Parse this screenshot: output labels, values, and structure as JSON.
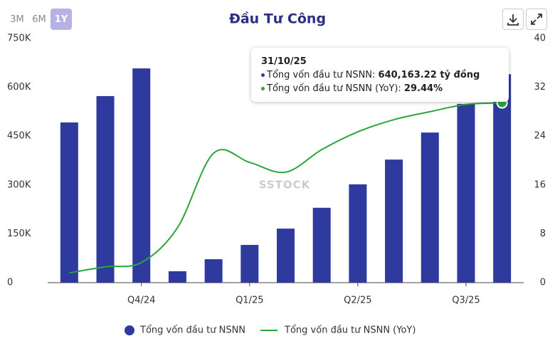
{
  "controls": {
    "ranges": [
      "3M",
      "6M",
      "1Y"
    ],
    "active": 2
  },
  "chart_data": {
    "type": "bar",
    "title": "Đầu Tư Công",
    "watermark": "SSTOCK",
    "categories": [
      null,
      null,
      "Q4/24",
      null,
      null,
      "Q1/25",
      null,
      null,
      "Q2/25",
      null,
      null,
      "Q3/25",
      null
    ],
    "series": [
      {
        "name": "Tổng vốn đầu tư NSNN",
        "type": "bar",
        "color": "#2f3a9e",
        "values": [
          492000,
          573000,
          658000,
          35000,
          72000,
          116000,
          166000,
          230000,
          302000,
          378000,
          461000,
          549000,
          640163.22
        ]
      },
      {
        "name": "Tổng vốn đầu tư NSNN (YoY)",
        "type": "line",
        "axis": "y2",
        "color": "#2aa63a",
        "values": [
          1.6,
          2.6,
          3.3,
          9.0,
          21.2,
          19.7,
          18.1,
          21.8,
          24.7,
          26.7,
          28.0,
          29.2,
          29.44
        ]
      }
    ],
    "ylim": [
      0,
      750000
    ],
    "yticks": [
      0,
      {
        "value": 150000,
        "label": "150K"
      },
      {
        "value": 300000,
        "label": "300K"
      },
      {
        "value": 450000,
        "label": "450K"
      },
      {
        "value": 600000,
        "label": "600K"
      },
      {
        "value": 750000,
        "label": "750K"
      }
    ],
    "y2lim": [
      0,
      40
    ],
    "y2ticks": [
      0,
      8,
      16,
      24,
      32,
      40
    ],
    "grid": false,
    "tooltip": {
      "title": "31/10/25",
      "items": [
        {
          "label": "Tổng vốn đầu tư NSNN: ",
          "value": "640,163.22 tỷ đồng"
        },
        {
          "label": "Tổng vốn đầu tư NSNN (YoY): ",
          "value": "29.44%"
        }
      ]
    }
  }
}
